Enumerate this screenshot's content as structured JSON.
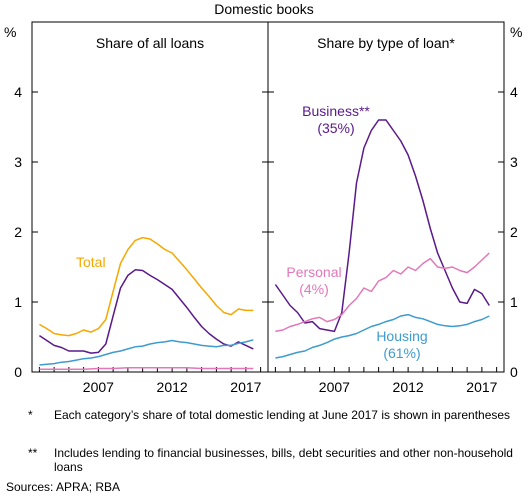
{
  "chart_data": [
    {
      "type": "line",
      "title": "Share of all loans",
      "ylabel": "%",
      "ylim": [
        0,
        5
      ],
      "xlim": [
        2002.5,
        2018.5
      ],
      "xticks": [
        "2007",
        "2012",
        "2017"
      ],
      "yticks": [
        "0",
        "1",
        "2",
        "3",
        "4"
      ],
      "series": [
        {
          "name": "Total",
          "color": "#f5a800",
          "x": [
            2003.0,
            2003.5,
            2004.0,
            2004.5,
            2005.0,
            2005.5,
            2006.0,
            2006.5,
            2007.0,
            2007.5,
            2008.0,
            2008.5,
            2009.0,
            2009.5,
            2010.0,
            2010.5,
            2011.0,
            2011.5,
            2012.0,
            2012.5,
            2013.0,
            2013.5,
            2014.0,
            2014.5,
            2015.0,
            2015.5,
            2016.0,
            2016.5,
            2017.0,
            2017.5
          ],
          "y": [
            0.68,
            0.62,
            0.55,
            0.53,
            0.52,
            0.55,
            0.6,
            0.57,
            0.62,
            0.75,
            1.15,
            1.55,
            1.75,
            1.88,
            1.92,
            1.9,
            1.83,
            1.75,
            1.7,
            1.58,
            1.46,
            1.33,
            1.2,
            1.08,
            0.95,
            0.85,
            0.82,
            0.9,
            0.88,
            0.88
          ]
        },
        {
          "name": "",
          "color": "#5a1a8a",
          "x": [
            2003.0,
            2003.5,
            2004.0,
            2004.5,
            2005.0,
            2005.5,
            2006.0,
            2006.5,
            2007.0,
            2007.5,
            2008.0,
            2008.5,
            2009.0,
            2009.5,
            2010.0,
            2010.5,
            2011.0,
            2011.5,
            2012.0,
            2012.5,
            2013.0,
            2013.5,
            2014.0,
            2014.5,
            2015.0,
            2015.5,
            2016.0,
            2016.5,
            2017.0,
            2017.5
          ],
          "y": [
            0.52,
            0.45,
            0.38,
            0.35,
            0.3,
            0.3,
            0.3,
            0.27,
            0.28,
            0.4,
            0.8,
            1.2,
            1.38,
            1.46,
            1.45,
            1.38,
            1.32,
            1.25,
            1.18,
            1.05,
            0.92,
            0.78,
            0.65,
            0.55,
            0.47,
            0.4,
            0.37,
            0.43,
            0.38,
            0.33
          ]
        },
        {
          "name": "",
          "color": "#3e9bd0",
          "x": [
            2003.0,
            2003.5,
            2004.0,
            2004.5,
            2005.0,
            2005.5,
            2006.0,
            2006.5,
            2007.0,
            2007.5,
            2008.0,
            2008.5,
            2009.0,
            2009.5,
            2010.0,
            2010.5,
            2011.0,
            2011.5,
            2012.0,
            2012.5,
            2013.0,
            2013.5,
            2014.0,
            2014.5,
            2015.0,
            2015.5,
            2016.0,
            2016.5,
            2017.0,
            2017.5
          ],
          "y": [
            0.1,
            0.11,
            0.12,
            0.14,
            0.15,
            0.17,
            0.19,
            0.2,
            0.22,
            0.25,
            0.28,
            0.3,
            0.33,
            0.36,
            0.37,
            0.4,
            0.42,
            0.43,
            0.45,
            0.43,
            0.42,
            0.4,
            0.38,
            0.37,
            0.36,
            0.38,
            0.38,
            0.41,
            0.43,
            0.46
          ]
        },
        {
          "name": "",
          "color": "#e377b8",
          "x": [
            2003.0,
            2004.0,
            2005.0,
            2006.0,
            2007.0,
            2008.0,
            2009.0,
            2010.0,
            2011.0,
            2012.0,
            2013.0,
            2014.0,
            2015.0,
            2016.0,
            2017.0,
            2017.5
          ],
          "y": [
            0.04,
            0.04,
            0.04,
            0.04,
            0.05,
            0.05,
            0.06,
            0.06,
            0.06,
            0.06,
            0.06,
            0.05,
            0.05,
            0.05,
            0.05,
            0.05
          ]
        }
      ]
    },
    {
      "type": "line",
      "title": "Share by type of loan*",
      "ylabel": "%",
      "ylim": [
        0,
        5
      ],
      "xlim": [
        2002.5,
        2018.5
      ],
      "xticks": [
        "2007",
        "2012",
        "2017"
      ],
      "yticks": [
        "0",
        "1",
        "2",
        "3",
        "4"
      ],
      "series": [
        {
          "name": "Business**",
          "color": "#5a1a8a",
          "x": [
            2003.0,
            2003.5,
            2004.0,
            2004.5,
            2005.0,
            2005.5,
            2006.0,
            2006.5,
            2007.0,
            2007.5,
            2008.0,
            2008.5,
            2009.0,
            2009.5,
            2010.0,
            2010.5,
            2011.0,
            2011.5,
            2012.0,
            2012.5,
            2013.0,
            2013.5,
            2014.0,
            2014.5,
            2015.0,
            2015.5,
            2016.0,
            2016.5,
            2017.0,
            2017.5
          ],
          "y": [
            1.25,
            1.1,
            0.95,
            0.85,
            0.7,
            0.72,
            0.62,
            0.6,
            0.58,
            0.85,
            1.7,
            2.7,
            3.2,
            3.45,
            3.6,
            3.6,
            3.45,
            3.3,
            3.1,
            2.8,
            2.45,
            2.05,
            1.7,
            1.45,
            1.2,
            1.0,
            0.98,
            1.18,
            1.12,
            0.95
          ]
        },
        {
          "name": "Personal",
          "color": "#e377b8",
          "x": [
            2003.0,
            2003.5,
            2004.0,
            2004.5,
            2005.0,
            2005.5,
            2006.0,
            2006.5,
            2007.0,
            2007.5,
            2008.0,
            2008.5,
            2009.0,
            2009.5,
            2010.0,
            2010.5,
            2011.0,
            2011.5,
            2012.0,
            2012.5,
            2013.0,
            2013.5,
            2014.0,
            2014.5,
            2015.0,
            2015.5,
            2016.0,
            2016.5,
            2017.0,
            2017.5
          ],
          "y": [
            0.58,
            0.6,
            0.65,
            0.68,
            0.72,
            0.76,
            0.78,
            0.72,
            0.75,
            0.82,
            0.95,
            1.05,
            1.2,
            1.15,
            1.3,
            1.35,
            1.45,
            1.4,
            1.5,
            1.45,
            1.55,
            1.62,
            1.5,
            1.48,
            1.5,
            1.45,
            1.42,
            1.5,
            1.6,
            1.7
          ]
        },
        {
          "name": "Housing",
          "color": "#3e9bd0",
          "x": [
            2003.0,
            2003.5,
            2004.0,
            2004.5,
            2005.0,
            2005.5,
            2006.0,
            2006.5,
            2007.0,
            2007.5,
            2008.0,
            2008.5,
            2009.0,
            2009.5,
            2010.0,
            2010.5,
            2011.0,
            2011.5,
            2012.0,
            2012.5,
            2013.0,
            2013.5,
            2014.0,
            2014.5,
            2015.0,
            2015.5,
            2016.0,
            2016.5,
            2017.0,
            2017.5
          ],
          "y": [
            0.2,
            0.22,
            0.25,
            0.28,
            0.3,
            0.35,
            0.38,
            0.42,
            0.47,
            0.5,
            0.52,
            0.55,
            0.6,
            0.65,
            0.68,
            0.72,
            0.75,
            0.8,
            0.82,
            0.78,
            0.76,
            0.72,
            0.68,
            0.66,
            0.65,
            0.66,
            0.68,
            0.72,
            0.75,
            0.8
          ]
        }
      ]
    }
  ],
  "header": {
    "title": "Domestic books"
  },
  "labels": {
    "left_unit": "%",
    "right_unit": "%",
    "total": "Total",
    "business": "Business**",
    "business_pct": "(35%)",
    "personal": "Personal",
    "personal_pct": "(4%)",
    "housing": "Housing",
    "housing_pct": "(61%)"
  },
  "footnotes": [
    {
      "mark": "*",
      "text": "Each category’s share of total domestic lending at June 2017 is shown in parentheses"
    },
    {
      "mark": "**",
      "text": "Includes lending to financial businesses, bills, debt securities and other non-household loans"
    }
  ],
  "sources": "Sources: APRA; RBA"
}
